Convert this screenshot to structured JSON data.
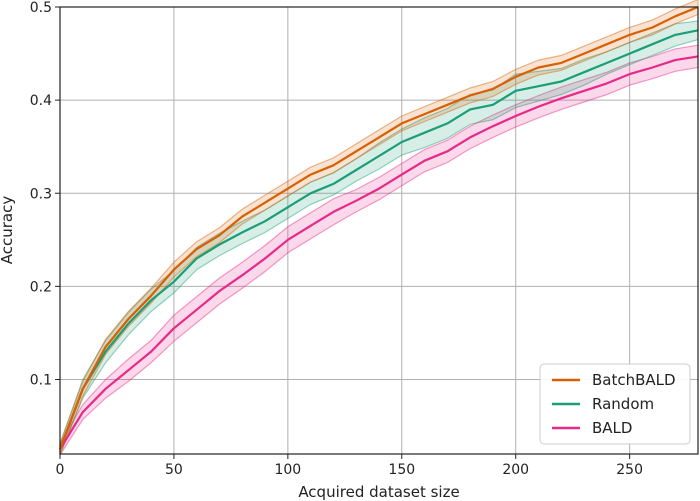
{
  "chart_data": {
    "type": "line",
    "title": "",
    "xlabel": "Acquired dataset size",
    "ylabel": "Accuracy",
    "xlim": [
      0,
      280
    ],
    "ylim": [
      0.02,
      0.5
    ],
    "xticks": [
      0,
      50,
      100,
      150,
      200,
      250
    ],
    "yticks": [
      0.1,
      0.2,
      0.3,
      0.4,
      0.5
    ],
    "xtick_labels": [
      "0",
      "50",
      "100",
      "150",
      "200",
      "250"
    ],
    "ytick_labels": [
      "0.1",
      "0.2",
      "0.3",
      "0.4",
      "0.5"
    ],
    "grid": true,
    "legend_position": "bottom-right",
    "series": [
      {
        "name": "BatchBALD",
        "color": "#d95f02",
        "x": [
          0,
          10,
          20,
          30,
          40,
          50,
          60,
          70,
          80,
          90,
          100,
          110,
          120,
          130,
          140,
          150,
          160,
          170,
          180,
          190,
          200,
          210,
          220,
          230,
          240,
          250,
          260,
          270,
          280
        ],
        "y": [
          0.025,
          0.09,
          0.135,
          0.165,
          0.19,
          0.218,
          0.24,
          0.255,
          0.275,
          0.29,
          0.305,
          0.32,
          0.33,
          0.345,
          0.36,
          0.375,
          0.385,
          0.395,
          0.405,
          0.412,
          0.425,
          0.435,
          0.44,
          0.45,
          0.46,
          0.47,
          0.478,
          0.49,
          0.5
        ],
        "band": [
          0.006,
          0.008,
          0.008,
          0.008,
          0.008,
          0.008,
          0.008,
          0.008,
          0.008,
          0.008,
          0.008,
          0.008,
          0.008,
          0.008,
          0.008,
          0.008,
          0.008,
          0.008,
          0.008,
          0.008,
          0.008,
          0.008,
          0.008,
          0.008,
          0.008,
          0.008,
          0.008,
          0.008,
          0.008
        ]
      },
      {
        "name": "Random",
        "color": "#1b9e77",
        "x": [
          0,
          10,
          20,
          30,
          40,
          50,
          60,
          70,
          80,
          90,
          100,
          110,
          120,
          130,
          140,
          150,
          160,
          170,
          180,
          190,
          200,
          210,
          220,
          230,
          240,
          250,
          260,
          270,
          280
        ],
        "y": [
          0.025,
          0.09,
          0.13,
          0.16,
          0.185,
          0.205,
          0.23,
          0.245,
          0.258,
          0.27,
          0.285,
          0.3,
          0.31,
          0.325,
          0.34,
          0.355,
          0.365,
          0.375,
          0.39,
          0.395,
          0.41,
          0.415,
          0.42,
          0.43,
          0.44,
          0.45,
          0.46,
          0.47,
          0.475
        ],
        "band": [
          0.006,
          0.01,
          0.012,
          0.012,
          0.012,
          0.012,
          0.012,
          0.012,
          0.012,
          0.012,
          0.012,
          0.012,
          0.012,
          0.012,
          0.014,
          0.014,
          0.016,
          0.016,
          0.016,
          0.016,
          0.018,
          0.016,
          0.014,
          0.014,
          0.012,
          0.012,
          0.012,
          0.012,
          0.01
        ]
      },
      {
        "name": "BALD",
        "color": "#e7298a",
        "x": [
          0,
          10,
          20,
          30,
          40,
          50,
          60,
          70,
          80,
          90,
          100,
          110,
          120,
          130,
          140,
          150,
          160,
          170,
          180,
          190,
          200,
          210,
          220,
          230,
          240,
          250,
          260,
          270,
          280
        ],
        "y": [
          0.025,
          0.065,
          0.09,
          0.11,
          0.13,
          0.155,
          0.175,
          0.195,
          0.212,
          0.23,
          0.25,
          0.265,
          0.28,
          0.292,
          0.305,
          0.32,
          0.335,
          0.345,
          0.36,
          0.372,
          0.383,
          0.393,
          0.402,
          0.41,
          0.418,
          0.428,
          0.435,
          0.443,
          0.447
        ],
        "band": [
          0.006,
          0.008,
          0.01,
          0.012,
          0.012,
          0.014,
          0.014,
          0.014,
          0.014,
          0.014,
          0.014,
          0.014,
          0.014,
          0.012,
          0.012,
          0.012,
          0.012,
          0.012,
          0.012,
          0.012,
          0.012,
          0.012,
          0.012,
          0.012,
          0.012,
          0.012,
          0.012,
          0.012,
          0.012
        ]
      }
    ]
  }
}
